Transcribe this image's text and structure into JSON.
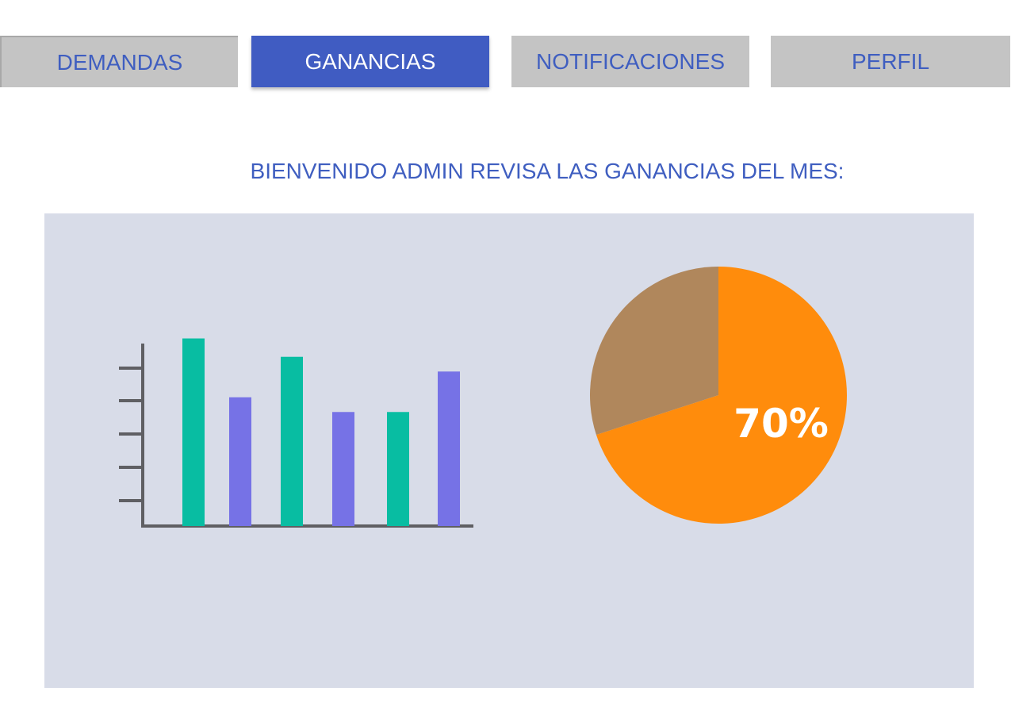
{
  "tabs": [
    {
      "label": "DEMANDAS",
      "active": false
    },
    {
      "label": "GANANCIAS",
      "active": true
    },
    {
      "label": "NOTIFICACIONES",
      "active": false
    },
    {
      "label": "PERFIL",
      "active": false
    }
  ],
  "welcome": "BIENVENIDO ADMIN REVISA LAS GANANCIAS DEL MES:",
  "colors": {
    "accent": "#405cc2",
    "panel": "#d8dce8",
    "bar_teal": "#08bda2",
    "bar_purple": "#7672e6",
    "pie_main": "#ff8c0c",
    "pie_rest": "#b0875c",
    "axis": "#5f5f63"
  },
  "chart_data": [
    {
      "type": "bar",
      "values": [
        5.1,
        3.5,
        4.6,
        3.1,
        3.1,
        4.2
      ],
      "ylim": [
        0,
        5.5
      ],
      "colors": [
        "#08bda2",
        "#7672e6",
        "#08bda2",
        "#7672e6",
        "#08bda2",
        "#7672e6"
      ]
    },
    {
      "type": "pie",
      "values": [
        70,
        30
      ],
      "colors": [
        "#ff8c0c",
        "#b0875c"
      ],
      "data_label": "70%"
    }
  ]
}
